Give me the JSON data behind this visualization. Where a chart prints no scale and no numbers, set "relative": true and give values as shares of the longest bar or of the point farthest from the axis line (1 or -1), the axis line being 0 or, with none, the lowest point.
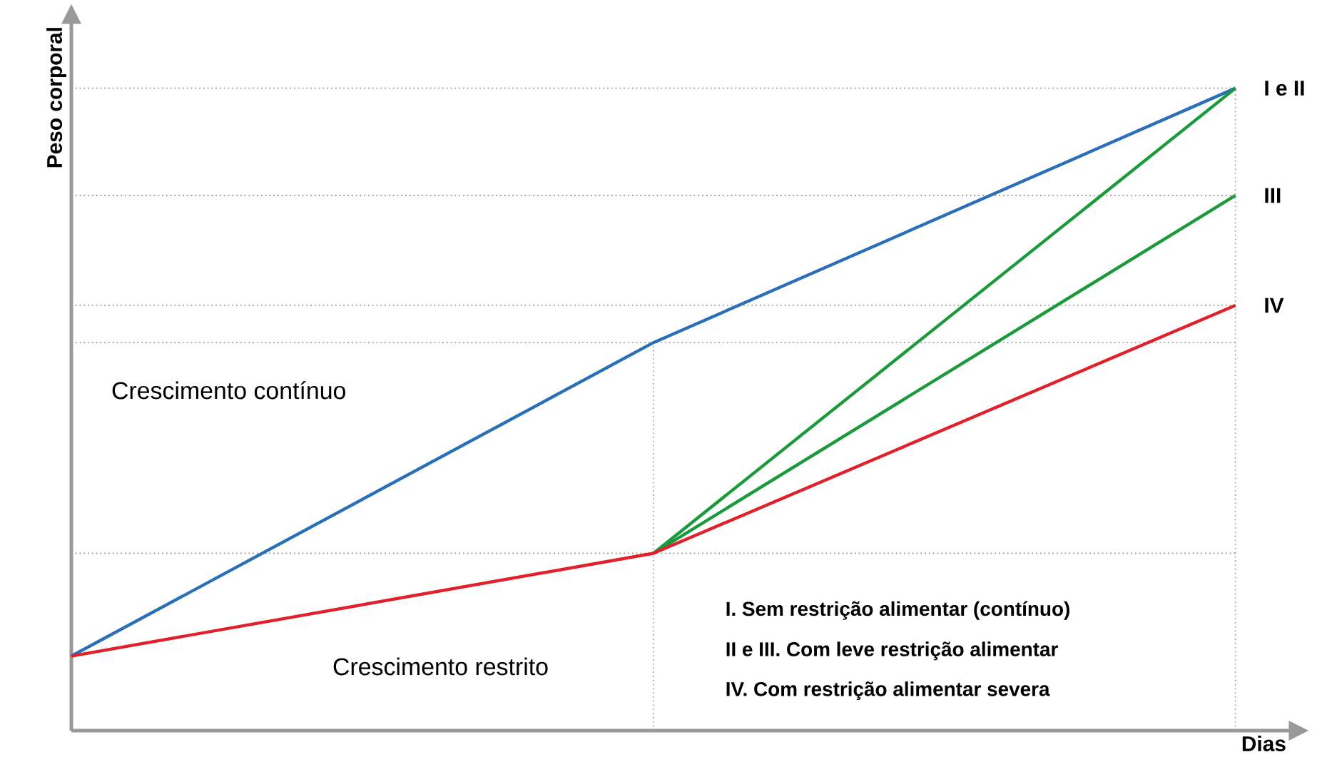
{
  "chart_data": {
    "type": "line",
    "relative": true,
    "xlabel": "Dias",
    "ylabel": "Peso corporal",
    "categories": [
      null,
      null,
      null
    ],
    "series": [
      {
        "name": "I e II",
        "color": "#2a6fb8",
        "values": [
          0.116,
          0.604,
          1
        ]
      },
      {
        "color": "#1a9a3a",
        "values": [
          null,
          0.276,
          1
        ]
      },
      {
        "name": "III",
        "color": "#1a9a3a",
        "values": [
          null,
          0.276,
          0.833
        ]
      },
      {
        "name": "IV",
        "color": "#e0202a",
        "values": [
          0.116,
          0.276,
          0.662
        ]
      }
    ],
    "ref_lines": [
      {
        "axis": "y",
        "value": 1,
        "color": "#9a9a9a",
        "line_style": "dotted"
      },
      {
        "axis": "y",
        "value": 0.833,
        "color": "#9a9a9a",
        "line_style": "dotted"
      },
      {
        "axis": "y",
        "value": 0.662,
        "color": "#9a9a9a",
        "line_style": "dotted"
      },
      {
        "axis": "y",
        "value": 0.604,
        "color": "#9a9a9a",
        "line_style": "dotted"
      },
      {
        "axis": "y",
        "value": 0.276,
        "color": "#9a9a9a",
        "line_style": "dotted"
      }
    ],
    "annotations": [
      "Crescimento contínuo",
      "Crescimento restrito",
      "I. Sem restrição alimentar (contínuo)",
      "II e III. Com leve restrição alimentar",
      "IV. Com restrição alimentar severa"
    ],
    "line_style": "solid",
    "marker": "none"
  }
}
